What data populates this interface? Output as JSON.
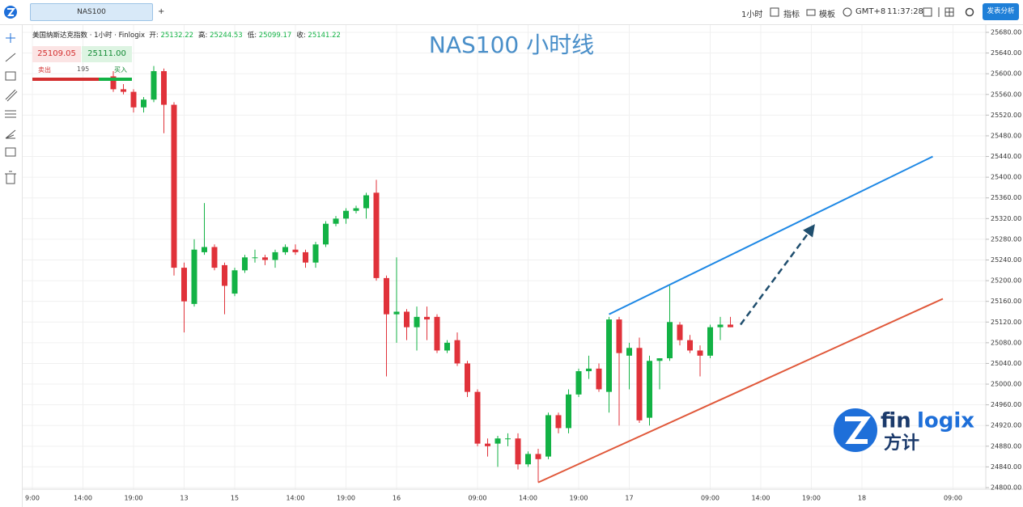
{
  "ui": {
    "tab": "NAS100",
    "tab_add": "+",
    "interval": "1小时",
    "indicators": "指标",
    "templates": "模板",
    "timezone": "GMT+8",
    "clock": "11:37:28",
    "publish": "发表分析",
    "symbol_line": "美国纳斯达克指数 · 1小时 · Finlogix",
    "ohlc": [
      {
        "label": "开:",
        "value": "25132.22"
      },
      {
        "label": "高:",
        "value": "25244.53"
      },
      {
        "label": "低:",
        "value": "25099.17"
      },
      {
        "label": "收:",
        "value": "25141.22"
      }
    ],
    "trade": {
      "bid": "25109.05",
      "ask": "25111.00",
      "sell": "卖出",
      "qty": "195",
      "buy": "买入"
    },
    "logo": {
      "a": "fin",
      "b": "logix",
      "c": "方计"
    }
  },
  "chart_data": {
    "type": "candlestick",
    "title": "NAS100 小时线",
    "up_color": "#13b245",
    "down_color": "#e0323a",
    "categories": [
      "9:00",
      null,
      null,
      null,
      null,
      "14:00",
      null,
      null,
      null,
      null,
      "19:00",
      null,
      null,
      null,
      null,
      "13",
      null,
      null,
      null,
      null,
      "15",
      null,
      null,
      null,
      null,
      null,
      "14:00",
      null,
      null,
      null,
      null,
      "19:00",
      null,
      null,
      null,
      null,
      "16",
      null,
      null,
      null,
      null,
      null,
      null,
      null,
      "09:00",
      null,
      null,
      null,
      null,
      "14:00",
      null,
      null,
      null,
      null,
      "19:00",
      null,
      null,
      null,
      null,
      "17",
      null,
      null,
      null,
      null,
      null,
      null,
      null,
      "09:00",
      null,
      null,
      null,
      null,
      "14:00",
      null,
      null,
      null,
      null,
      "19:00",
      null,
      null,
      null,
      null,
      "18",
      null,
      null,
      null,
      null,
      null,
      null,
      null,
      null,
      "09:00"
    ],
    "open": [
      null,
      null,
      null,
      null,
      null,
      null,
      null,
      null,
      25595,
      25570,
      25565,
      25535,
      25550,
      25605,
      25540,
      25225,
      25155,
      25255,
      25265,
      25230,
      25175,
      25220,
      25245,
      25245,
      25240,
      25255,
      25260,
      25255,
      25235,
      25270,
      25310,
      25320,
      25335,
      25340,
      25370,
      25205,
      25135,
      25140,
      25110,
      25130,
      25130,
      25065,
      25085,
      25040,
      24985,
      24885,
      24885,
      24895,
      24895,
      24845,
      24865,
      24860,
      24940,
      24915,
      24980,
      25025,
      25030,
      24985,
      25125,
      25055,
      25070,
      24935,
      25045,
      25050,
      25115,
      25085,
      25065,
      25055,
      25110,
      25115,
      null,
      null,
      null,
      null,
      null,
      null,
      null,
      null,
      null,
      null,
      null,
      null,
      null,
      null,
      null,
      null,
      null,
      null,
      null,
      null,
      null,
      null
    ],
    "high": [
      null,
      null,
      null,
      null,
      null,
      null,
      null,
      null,
      25605,
      25580,
      25570,
      25555,
      25615,
      25610,
      25545,
      25235,
      25280,
      25350,
      25270,
      25235,
      25225,
      25250,
      25260,
      25250,
      25260,
      25270,
      25270,
      25260,
      25275,
      25315,
      25325,
      25340,
      25345,
      25370,
      25395,
      25210,
      25245,
      25145,
      25150,
      25150,
      25135,
      25085,
      25100,
      25045,
      24990,
      24895,
      24900,
      24905,
      24905,
      24870,
      24875,
      24945,
      24945,
      24990,
      25030,
      25055,
      25040,
      25130,
      25130,
      25080,
      25090,
      25055,
      25050,
      25190,
      25120,
      25095,
      25075,
      25115,
      25130,
      25130,
      null,
      null,
      null,
      null,
      null,
      null,
      null,
      null,
      null,
      null,
      null,
      null,
      null,
      null,
      null,
      null,
      null,
      null,
      null,
      null,
      null,
      null
    ],
    "low": [
      null,
      null,
      null,
      null,
      null,
      null,
      null,
      null,
      25565,
      25560,
      25525,
      25525,
      25545,
      25485,
      25210,
      25100,
      25150,
      25250,
      25220,
      25135,
      25170,
      25215,
      25235,
      25230,
      25225,
      25250,
      25250,
      25225,
      25225,
      25265,
      25305,
      25310,
      25330,
      25320,
      25200,
      25015,
      25080,
      25085,
      25065,
      25085,
      25060,
      25060,
      25035,
      24975,
      24880,
      24860,
      24840,
      24880,
      24835,
      24840,
      24810,
      24855,
      24905,
      24905,
      24975,
      25010,
      24985,
      24945,
      24920,
      24990,
      24925,
      24920,
      24990,
      25045,
      25075,
      25060,
      25015,
      25050,
      25085,
      25110,
      null,
      null,
      null,
      null,
      null,
      null,
      null,
      null,
      null,
      null,
      null,
      null,
      null,
      null,
      null,
      null,
      null,
      null,
      null,
      null,
      null,
      null
    ],
    "close": [
      null,
      null,
      null,
      null,
      null,
      null,
      null,
      null,
      25570,
      25565,
      25535,
      25550,
      25605,
      25540,
      25225,
      25160,
      25260,
      25265,
      25225,
      25190,
      25220,
      25245,
      25245,
      25240,
      25255,
      25265,
      25255,
      25235,
      25270,
      25310,
      25320,
      25335,
      25340,
      25365,
      25205,
      25135,
      25140,
      25110,
      25130,
      25125,
      25065,
      25080,
      25040,
      24985,
      24885,
      24880,
      24895,
      24895,
      24845,
      24865,
      24855,
      24940,
      24915,
      24980,
      25025,
      25030,
      24990,
      25125,
      25060,
      25070,
      24930,
      25045,
      25050,
      25120,
      25085,
      25065,
      25055,
      25110,
      25115,
      25110,
      null,
      null,
      null,
      null,
      null,
      null,
      null,
      null,
      null,
      null,
      null,
      null,
      null,
      null,
      null,
      null,
      null,
      null,
      null,
      null,
      null,
      null
    ],
    "ylim": [
      24800,
      25680
    ],
    "yticks": [
      {
        "value": 24800,
        "label": "24800.00"
      },
      {
        "value": 24840,
        "label": "24840.00"
      },
      {
        "value": 24880,
        "label": "24880.00"
      },
      {
        "value": 24920,
        "label": "24920.00"
      },
      {
        "value": 24960,
        "label": "24960.00"
      },
      {
        "value": 25000,
        "label": "25000.00"
      },
      {
        "value": 25040,
        "label": "25040.00"
      },
      {
        "value": 25080,
        "label": "25080.00"
      },
      {
        "value": 25120,
        "label": "25120.00"
      },
      {
        "value": 25160,
        "label": "25160.00"
      },
      {
        "value": 25200,
        "label": "25200.00"
      },
      {
        "value": 25240,
        "label": "25240.00"
      },
      {
        "value": 25280,
        "label": "25280.00"
      },
      {
        "value": 25320,
        "label": "25320.00"
      },
      {
        "value": 25360,
        "label": "25360.00"
      },
      {
        "value": 25400,
        "label": "25400.00"
      },
      {
        "value": 25440,
        "label": "25440.00"
      },
      {
        "value": 25480,
        "label": "25480.00"
      },
      {
        "value": 25520,
        "label": "25520.00"
      },
      {
        "value": 25560,
        "label": "25560.00"
      },
      {
        "value": 25600,
        "label": "25600.00"
      },
      {
        "value": 25640,
        "label": "25640.00"
      },
      {
        "value": 25680,
        "label": "25680.00"
      }
    ],
    "grid": true,
    "trendlines": [
      {
        "color": "#1e88e5",
        "x": [
          57,
          89
        ],
        "y": [
          25135,
          25440
        ]
      },
      {
        "color": "#e0583a",
        "x": [
          50,
          90
        ],
        "y": [
          24810,
          25165
        ]
      },
      {
        "color": "#1f4e6e",
        "dashed": true,
        "arrow": true,
        "x": [
          70,
          77
        ],
        "y": [
          25115,
          25300
        ]
      }
    ]
  }
}
